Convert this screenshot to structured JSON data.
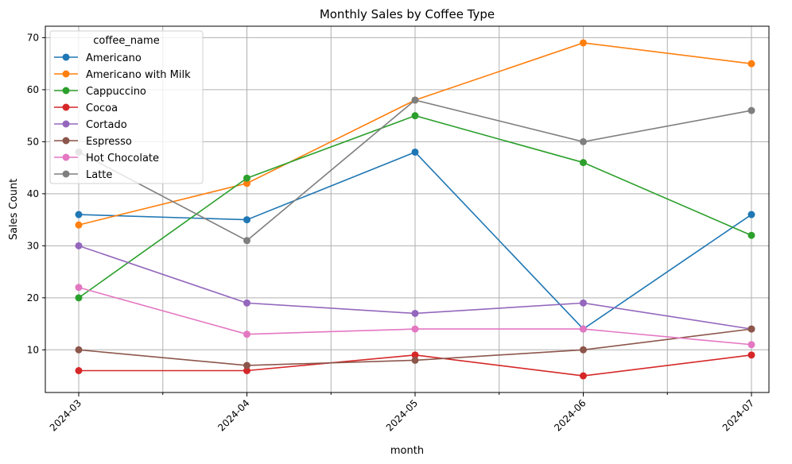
{
  "chart_data": {
    "type": "line",
    "title": "Monthly Sales by Coffee Type",
    "xlabel": "month",
    "ylabel": "Sales Count",
    "categories": [
      "2024-03",
      "2024-04",
      "2024-05",
      "2024-06",
      "2024-07"
    ],
    "ylim": [
      1.8,
      72.2
    ],
    "yticks": [
      10,
      20,
      30,
      40,
      50,
      60,
      70
    ],
    "grid": true,
    "legend_title": "coffee_name",
    "legend_position": "top-left",
    "series": [
      {
        "name": "Americano",
        "color": "#1f77b4",
        "values": [
          36,
          35,
          48,
          14,
          36
        ]
      },
      {
        "name": "Americano with Milk",
        "color": "#ff7f0e",
        "values": [
          34,
          42,
          58,
          69,
          65
        ]
      },
      {
        "name": "Cappuccino",
        "color": "#2ca02c",
        "values": [
          20,
          43,
          55,
          46,
          32
        ]
      },
      {
        "name": "Cocoa",
        "color": "#d62728",
        "values": [
          6,
          6,
          9,
          5,
          9
        ]
      },
      {
        "name": "Cortado",
        "color": "#9467bd",
        "values": [
          30,
          19,
          17,
          19,
          14
        ]
      },
      {
        "name": "Espresso",
        "color": "#8c564b",
        "values": [
          10,
          7,
          8,
          10,
          14
        ]
      },
      {
        "name": "Hot Chocolate",
        "color": "#e377c2",
        "values": [
          22,
          13,
          14,
          14,
          11
        ]
      },
      {
        "name": "Latte",
        "color": "#7f7f7f",
        "values": [
          48,
          31,
          58,
          50,
          56
        ]
      }
    ]
  }
}
